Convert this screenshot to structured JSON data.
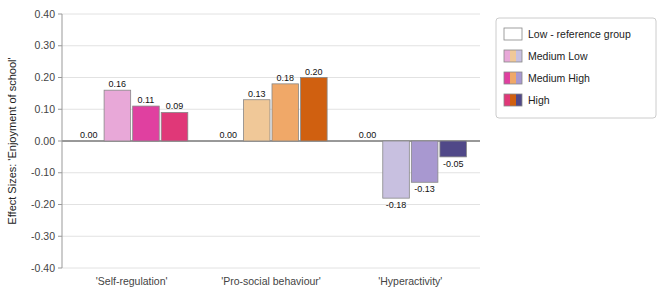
{
  "chart_data": {
    "type": "bar",
    "ylabel": "Effect Sizes: 'Enjoyment of school'",
    "categories": [
      "'Self-regulation'",
      "'Pro-social behaviour'",
      "'Hyperactivity'"
    ],
    "series": [
      {
        "name": "Low - reference group",
        "colors": [
          "white",
          "white",
          "white"
        ],
        "values": [
          0.0,
          0.0,
          0.0
        ],
        "value_labels": [
          "0.00",
          "0.00",
          "0.00"
        ]
      },
      {
        "name": "Medium Low",
        "colors": [
          "#e8a8d8",
          "#f0c898",
          "#c8c0e0"
        ],
        "values": [
          0.16,
          0.13,
          -0.18
        ],
        "value_labels": [
          "0.16",
          "0.13",
          "-0.18"
        ]
      },
      {
        "name": "Medium High",
        "colors": [
          "#e040a0",
          "#f0a868",
          "#a898d0"
        ],
        "values": [
          0.11,
          0.18,
          -0.13
        ],
        "value_labels": [
          "0.11",
          "0.18",
          "-0.13"
        ]
      },
      {
        "name": "High",
        "colors": [
          "#e03878",
          "#d06010",
          "#504888"
        ],
        "values": [
          0.09,
          0.2,
          -0.05
        ],
        "value_labels": [
          "0.09",
          "0.20",
          "-0.05"
        ]
      }
    ],
    "ylim": [
      -0.4,
      0.4
    ],
    "yticks": [
      {
        "value": -0.4,
        "label": "-0.40"
      },
      {
        "value": -0.3,
        "label": "-0.30"
      },
      {
        "value": -0.2,
        "label": "-0.20"
      },
      {
        "value": -0.1,
        "label": "-0.10"
      },
      {
        "value": 0.0,
        "label": "0.00"
      },
      {
        "value": 0.1,
        "label": "0.10"
      },
      {
        "value": 0.2,
        "label": "0.20"
      },
      {
        "value": 0.3,
        "label": "0.30"
      },
      {
        "value": 0.4,
        "label": "0.40"
      }
    ],
    "grid": true,
    "legend": "right",
    "data_labels": true
  }
}
